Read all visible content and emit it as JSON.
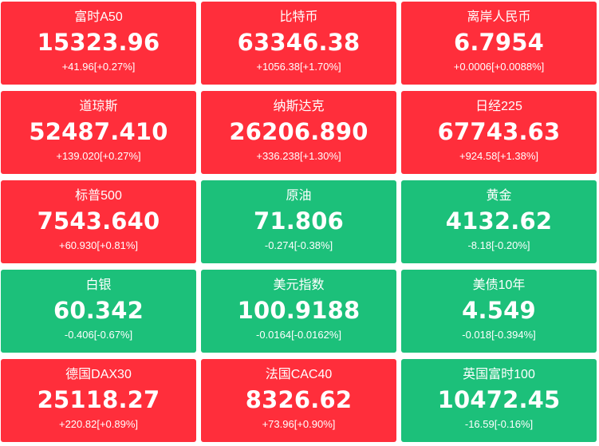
{
  "colors": {
    "up": "#ff2e3b",
    "down": "#1cc07a",
    "text": "#ffffff"
  },
  "tiles": [
    {
      "name": "富时A50",
      "price": "15323.96",
      "change": "+41.96[+0.27%]",
      "direction": "up"
    },
    {
      "name": "比特币",
      "price": "63346.38",
      "change": "+1056.38[+1.70%]",
      "direction": "up"
    },
    {
      "name": "离岸人民币",
      "price": "6.7954",
      "change": "+0.0006[+0.0088%]",
      "direction": "up"
    },
    {
      "name": "道琼斯",
      "price": "52487.410",
      "change": "+139.020[+0.27%]",
      "direction": "up"
    },
    {
      "name": "纳斯达克",
      "price": "26206.890",
      "change": "+336.238[+1.30%]",
      "direction": "up"
    },
    {
      "name": "日经225",
      "price": "67743.63",
      "change": "+924.58[+1.38%]",
      "direction": "up"
    },
    {
      "name": "标普500",
      "price": "7543.640",
      "change": "+60.930[+0.81%]",
      "direction": "up"
    },
    {
      "name": "原油",
      "price": "71.806",
      "change": "-0.274[-0.38%]",
      "direction": "down"
    },
    {
      "name": "黄金",
      "price": "4132.62",
      "change": "-8.18[-0.20%]",
      "direction": "down"
    },
    {
      "name": "白银",
      "price": "60.342",
      "change": "-0.406[-0.67%]",
      "direction": "down"
    },
    {
      "name": "美元指数",
      "price": "100.9188",
      "change": "-0.0164[-0.0162%]",
      "direction": "down"
    },
    {
      "name": "美债10年",
      "price": "4.549",
      "change": "-0.018[-0.394%]",
      "direction": "down"
    },
    {
      "name": "德国DAX30",
      "price": "25118.27",
      "change": "+220.82[+0.89%]",
      "direction": "up"
    },
    {
      "name": "法国CAC40",
      "price": "8326.62",
      "change": "+73.96[+0.90%]",
      "direction": "up"
    },
    {
      "name": "英国富时100",
      "price": "10472.45",
      "change": "-16.59[-0.16%]",
      "direction": "down"
    }
  ]
}
